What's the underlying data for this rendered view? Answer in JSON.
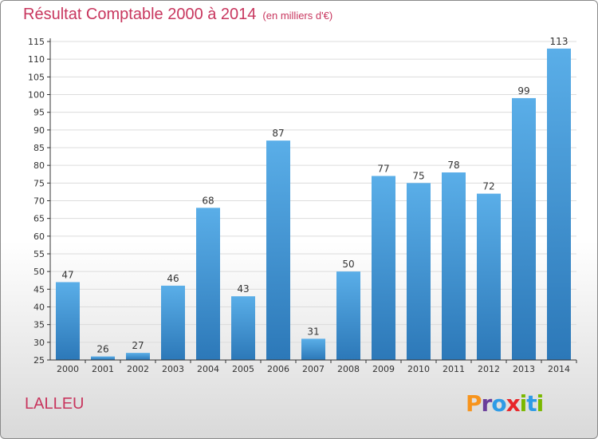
{
  "chart_data": {
    "type": "bar",
    "title": "Résultat Comptable 2000 à 2014",
    "subtitle": "(en milliers d'€)",
    "categories": [
      "2000",
      "2001",
      "2002",
      "2003",
      "2004",
      "2005",
      "2006",
      "2007",
      "2008",
      "2009",
      "2010",
      "2011",
      "2012",
      "2013",
      "2014"
    ],
    "values": [
      47,
      26,
      27,
      46,
      68,
      43,
      87,
      31,
      50,
      77,
      75,
      78,
      72,
      99,
      113
    ],
    "data_labels": [
      "47",
      "26",
      "27",
      "46",
      "68",
      "43",
      "87",
      "31",
      "50",
      "77",
      "75",
      "78",
      "72",
      "99",
      "113"
    ],
    "yticks": [
      "25",
      "30",
      "35",
      "40",
      "45",
      "50",
      "55",
      "60",
      "65",
      "70",
      "75",
      "80",
      "85",
      "90",
      "95",
      "100",
      "105",
      "110",
      "115"
    ],
    "ylim": [
      25,
      115
    ],
    "grid": true,
    "bar_color": "#4a9ad8"
  },
  "footer": {
    "commune": "LALLEU",
    "logo_letters": [
      "P",
      "r",
      "o",
      "x",
      "i",
      "t",
      "i"
    ],
    "logo_colors": [
      "#f7941d",
      "#6a3d9a",
      "#2e9be6",
      "#e8262a",
      "#7ab800",
      "#2e9be6",
      "#7ab800"
    ]
  }
}
